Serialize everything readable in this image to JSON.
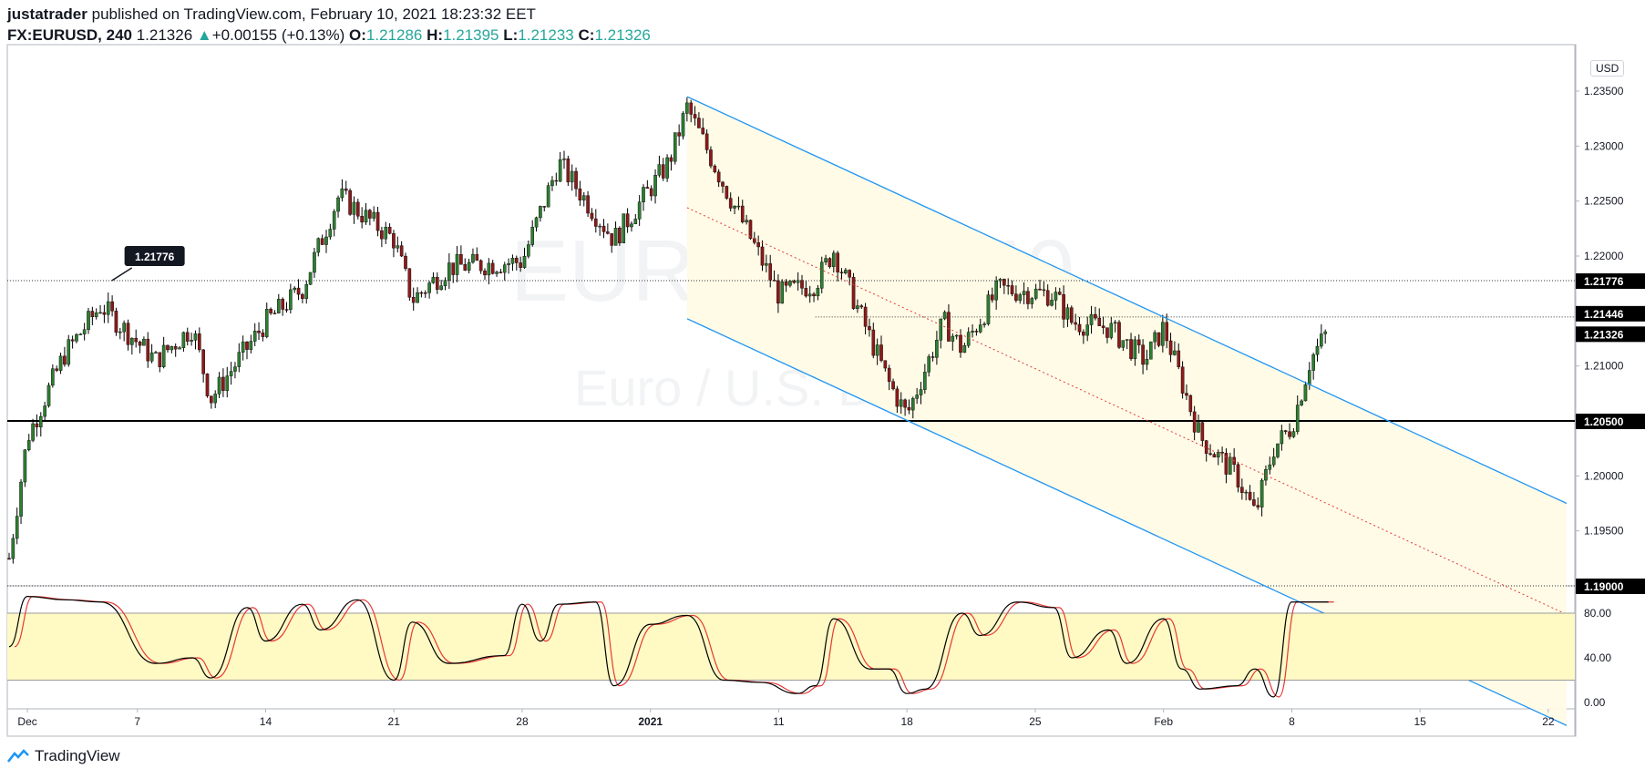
{
  "header": {
    "author": "justatrader",
    "published_text": "published on TradingView.com, February 10, 2021 18:23:32 EET",
    "symbol": "FX:EURUSD, 240",
    "last": "1.21326",
    "arrow": "▲",
    "change": "+0.00155 (+0.13%)",
    "o_label": "O:",
    "o_value": "1.21286",
    "h_label": "H:",
    "h_value": "1.21395",
    "l_label": "L:",
    "l_value": "1.21233",
    "c_label": "C:",
    "c_value": "1.21326"
  },
  "footer": {
    "brand": "TradingView"
  },
  "currency_label": "USD",
  "colors": {
    "up": "#26a69a",
    "down": "#ef5350",
    "candle_up_body": "#2e7d32",
    "candle_down_body": "#8b1a1a",
    "channel": "#2196f3",
    "channel_fill": "#fffbe6",
    "stoch_k": "#000000",
    "stoch_d": "#e53935",
    "stoch_band": "#fff9c4"
  },
  "chart_data": {
    "type": "candlestick",
    "symbol": "FX:EURUSD",
    "timeframe": "240",
    "y_axis": {
      "min": 1.19,
      "max": 1.235,
      "ticks": [
        "1.19500",
        "1.20000",
        "1.20500",
        "1.21000",
        "1.21500",
        "1.22000",
        "1.22500",
        "1.23000",
        "1.23500"
      ]
    },
    "x_axis": {
      "tick_labels": [
        "Dec",
        "7",
        "14",
        "21",
        "28",
        "2021",
        "11",
        "18",
        "25",
        "Feb",
        "8",
        "15",
        "22"
      ]
    },
    "price_labels": [
      "1.21776",
      "1.21446",
      "1.21326",
      "1.20500",
      "1.19000"
    ],
    "horizontal_lines": [
      {
        "value": 1.21776,
        "style": "dotted"
      },
      {
        "value": 1.205,
        "style": "solid"
      },
      {
        "value": 1.19,
        "style": "dotted"
      }
    ],
    "callout": {
      "text": "1.21776",
      "value": 1.21776,
      "date": "Dec 6"
    },
    "channel": {
      "upper": [
        {
          "date": "Jan 6",
          "value": 1.2345
        },
        {
          "date": "Feb 23",
          "value": 1.1975
        }
      ],
      "lower": [
        {
          "date": "Jan 6",
          "value": 1.2143
        },
        {
          "date": "Feb 23",
          "value": 1.1773
        }
      ],
      "mid": [
        {
          "date": "Jan 6",
          "value": 1.2244
        },
        {
          "date": "Feb 23",
          "value": 1.1874
        }
      ]
    },
    "candles_close_path": [
      {
        "date": "Nov 30",
        "value": 1.1925
      },
      {
        "date": "Dec 1",
        "value": 1.2035
      },
      {
        "date": "Dec 3",
        "value": 1.211
      },
      {
        "date": "Dec 5",
        "value": 1.2155
      },
      {
        "date": "Dec 8",
        "value": 1.2105
      },
      {
        "date": "Dec 10",
        "value": 1.2135
      },
      {
        "date": "Dec 11",
        "value": 1.207
      },
      {
        "date": "Dec 14",
        "value": 1.214
      },
      {
        "date": "Dec 16",
        "value": 1.217
      },
      {
        "date": "Dec 18",
        "value": 1.2255
      },
      {
        "date": "Dec 21",
        "value": 1.2215
      },
      {
        "date": "Dec 22",
        "value": 1.216
      },
      {
        "date": "Dec 24",
        "value": 1.219
      },
      {
        "date": "Dec 28",
        "value": 1.2195
      },
      {
        "date": "Dec 30",
        "value": 1.2285
      },
      {
        "date": "Jan 2",
        "value": 1.2215
      },
      {
        "date": "Jan 5",
        "value": 1.2285
      },
      {
        "date": "Jan 6",
        "value": 1.2335
      },
      {
        "date": "Jan 8",
        "value": 1.2265
      },
      {
        "date": "Jan 11",
        "value": 1.2165
      },
      {
        "date": "Jan 13",
        "value": 1.2175
      },
      {
        "date": "Jan 14",
        "value": 1.2205
      },
      {
        "date": "Jan 17",
        "value": 1.2085
      },
      {
        "date": "Jan 18",
        "value": 1.2055
      },
      {
        "date": "Jan 20",
        "value": 1.214
      },
      {
        "date": "Jan 21",
        "value": 1.2115
      },
      {
        "date": "Jan 23",
        "value": 1.217
      },
      {
        "date": "Jan 26",
        "value": 1.2165
      },
      {
        "date": "Jan 27",
        "value": 1.214
      },
      {
        "date": "Jan 29",
        "value": 1.2135
      },
      {
        "date": "Jan 31",
        "value": 1.2105
      },
      {
        "date": "Feb 1",
        "value": 1.2135
      },
      {
        "date": "Feb 2",
        "value": 1.2085
      },
      {
        "date": "Feb 3",
        "value": 1.2035
      },
      {
        "date": "Feb 5",
        "value": 1.2
      },
      {
        "date": "Feb 6",
        "value": 1.1965
      },
      {
        "date": "Feb 7",
        "value": 1.2025
      },
      {
        "date": "Feb 8",
        "value": 1.2045
      },
      {
        "date": "Feb 9",
        "value": 1.2105
      },
      {
        "date": "Feb 10",
        "value": 1.21326
      }
    ],
    "stochastic": {
      "y_ticks": [
        "0.00",
        "40.00",
        "80.00"
      ],
      "bands": [
        20,
        80
      ],
      "k": [
        {
          "date": "Nov 30",
          "value": 50
        },
        {
          "date": "Dec 1",
          "value": 95
        },
        {
          "date": "Dec 3",
          "value": 92
        },
        {
          "date": "Dec 5",
          "value": 90
        },
        {
          "date": "Dec 8",
          "value": 35
        },
        {
          "date": "Dec 10",
          "value": 40
        },
        {
          "date": "Dec 11",
          "value": 22
        },
        {
          "date": "Dec 13",
          "value": 85
        },
        {
          "date": "Dec 14",
          "value": 55
        },
        {
          "date": "Dec 16",
          "value": 88
        },
        {
          "date": "Dec 17",
          "value": 65
        },
        {
          "date": "Dec 19",
          "value": 92
        },
        {
          "date": "Dec 21",
          "value": 20
        },
        {
          "date": "Dec 22",
          "value": 72
        },
        {
          "date": "Dec 24",
          "value": 35
        },
        {
          "date": "Dec 27",
          "value": 42
        },
        {
          "date": "Dec 28",
          "value": 88
        },
        {
          "date": "Dec 29",
          "value": 55
        },
        {
          "date": "Dec 30",
          "value": 88
        },
        {
          "date": "Jan 1",
          "value": 90
        },
        {
          "date": "Jan 2",
          "value": 15
        },
        {
          "date": "Jan 4",
          "value": 70
        },
        {
          "date": "Jan 6",
          "value": 78
        },
        {
          "date": "Jan 8",
          "value": 20
        },
        {
          "date": "Jan 10",
          "value": 18
        },
        {
          "date": "Jan 12",
          "value": 8
        },
        {
          "date": "Jan 13",
          "value": 15
        },
        {
          "date": "Jan 14",
          "value": 75
        },
        {
          "date": "Jan 16",
          "value": 30
        },
        {
          "date": "Jan 17",
          "value": 30
        },
        {
          "date": "Jan 18",
          "value": 8
        },
        {
          "date": "Jan 19",
          "value": 12
        },
        {
          "date": "Jan 21",
          "value": 80
        },
        {
          "date": "Jan 22",
          "value": 60
        },
        {
          "date": "Jan 24",
          "value": 90
        },
        {
          "date": "Jan 26",
          "value": 85
        },
        {
          "date": "Jan 27",
          "value": 40
        },
        {
          "date": "Jan 29",
          "value": 65
        },
        {
          "date": "Jan 30",
          "value": 35
        },
        {
          "date": "Feb 1",
          "value": 75
        },
        {
          "date": "Feb 2",
          "value": 30
        },
        {
          "date": "Feb 3",
          "value": 12
        },
        {
          "date": "Feb 5",
          "value": 15
        },
        {
          "date": "Feb 6",
          "value": 30
        },
        {
          "date": "Feb 7",
          "value": 5
        },
        {
          "date": "Feb 8",
          "value": 90
        },
        {
          "date": "Feb 10",
          "value": 90
        }
      ]
    }
  }
}
